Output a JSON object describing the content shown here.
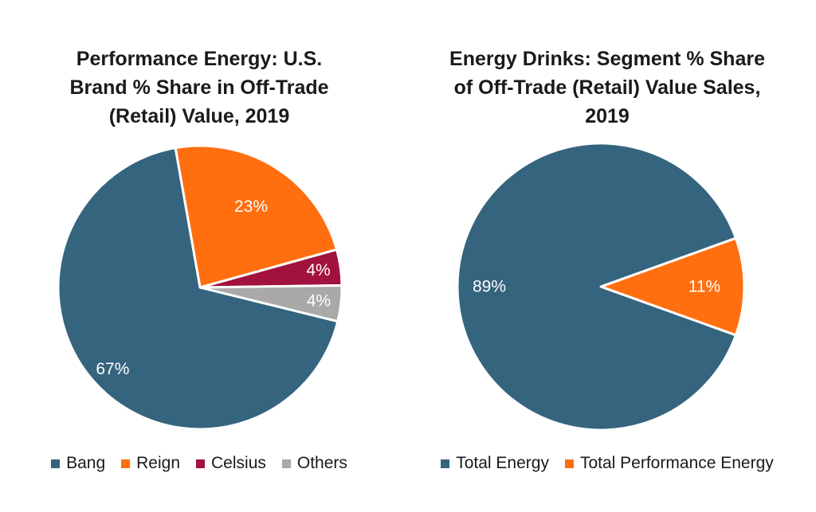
{
  "chart_data": [
    {
      "type": "pie",
      "title_lines": [
        "Performance Energy: U.S.",
        "Brand % Share in Off-Trade",
        "(Retail) Value, 2019"
      ],
      "categories": [
        "Bang",
        "Reign",
        "Celsius",
        "Others"
      ],
      "values": [
        67,
        23,
        4,
        4
      ],
      "labels": [
        "67%",
        "23%",
        "4%",
        "4%"
      ],
      "colors": [
        "#35647e",
        "#ff6f10",
        "#a2123e",
        "#a9a9a9"
      ],
      "legend": "bottom"
    },
    {
      "type": "pie",
      "title_lines": [
        "Energy Drinks: Segment % Share",
        "of Off-Trade (Retail) Value Sales,",
        "2019"
      ],
      "categories": [
        "Total Energy",
        "Total Performance Energy"
      ],
      "values": [
        89,
        11
      ],
      "labels": [
        "89%",
        "11%"
      ],
      "colors": [
        "#35647e",
        "#ff6f10"
      ],
      "legend": "bottom"
    }
  ]
}
